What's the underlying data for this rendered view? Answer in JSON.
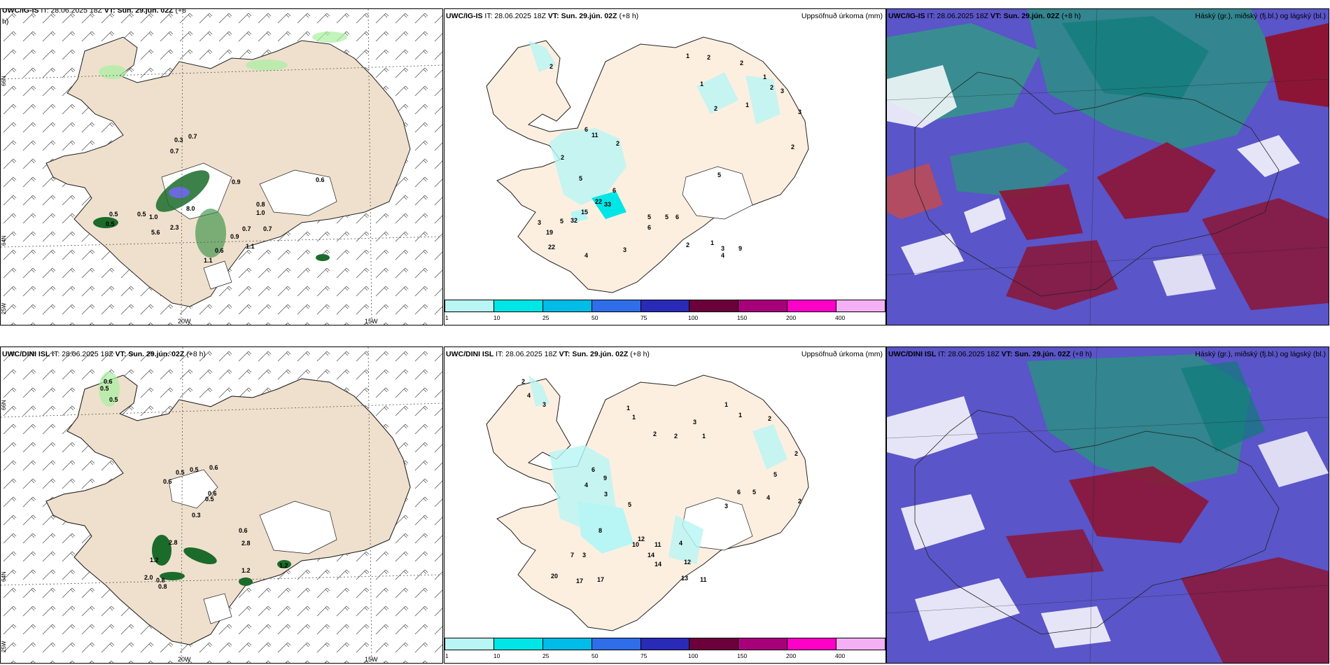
{
  "panels": [
    {
      "model": "UWC/IG-IS",
      "it": "IT: 28.06.2025 18Z",
      "vt_label": "VT:",
      "vt": "Sun. 29.jún. 02Z",
      "lead": "(+8",
      "lead2": "h)",
      "right": ""
    },
    {
      "model": "UWC/IG-IS",
      "it": "IT: 28.06.2025 18Z",
      "vt_label": "VT:",
      "vt": "Sun. 29.jún. 02Z",
      "lead": "(+8 h)",
      "right": "Uppsöfnuð úrkoma (mm)"
    },
    {
      "model": "UWC/IG-IS",
      "it": "IT: 28.06.2025 18Z",
      "vt_label": "VT:",
      "vt": "Sun. 29.jún. 02Z",
      "lead": "(+8 h)",
      "right": "Háský (gr.), miðský (fj.bl.) og lágský (bl.)"
    },
    {
      "model": "UWC/DINI ISL",
      "it": "IT: 28.06.2025 18Z",
      "vt_label": "VT:",
      "vt": "Sun. 29.jún. 02Z",
      "lead": "(+8 h)",
      "right": ""
    },
    {
      "model": "UWC/DINI ISL",
      "it": "IT: 28.06.2025 18Z",
      "vt_label": "VT:",
      "vt": "Sun. 29.jún. 02Z",
      "lead": "(+8 h)",
      "right": "Uppsöfnuð úrkoma (mm)"
    },
    {
      "model": "UWC/DINI ISL",
      "it": "IT: 28.06.2025 18Z",
      "vt_label": "VT:",
      "vt": "Sun. 29.jún. 02Z",
      "lead": "(+8 h)",
      "right": "Háský (gr.), miðský (fj.bl.) og lágský (bl.)"
    }
  ],
  "axes": {
    "lon_20w": "20W",
    "lon_15w": "15W",
    "lat_66n": "66N",
    "lat_64n": "64N",
    "lon_25w": "25W"
  },
  "legend": {
    "colors": [
      "#b8f5f5",
      "#00e5e5",
      "#00bce8",
      "#2f6ee8",
      "#2a2ab8",
      "#6b003b",
      "#a8007a",
      "#ff00c8",
      "#f5b0f5"
    ],
    "labels": [
      "1",
      "10",
      "25",
      "50",
      "75",
      "100",
      "150",
      "200",
      "400"
    ]
  },
  "precip_top_labels": [
    "0.7",
    "0.3",
    "0.7",
    "0.9",
    "0.6",
    "0.5",
    "0.5",
    "0.5",
    "1.0",
    "8.0",
    "5.6",
    "2.3",
    "0.8",
    "1.0",
    "0.7",
    "0.7",
    "0.9",
    "1.1",
    "0.6",
    "1.1"
  ],
  "precip_bottom_labels": [
    "0.6",
    "0.5",
    "0.5",
    "0.5",
    "0.5",
    "0.6",
    "0.6",
    "0.5",
    "0.3",
    "0.6",
    "2.8",
    "1.2",
    "2.0",
    "0.8",
    "0.8",
    "1.2",
    "2.8",
    "0.6",
    "1.2"
  ],
  "accum_top_labels": [
    "2",
    "1",
    "2",
    "2",
    "1",
    "2",
    "1",
    "1",
    "2",
    "3",
    "3",
    "2",
    "6",
    "11",
    "2",
    "2",
    "5",
    "6",
    "22",
    "33",
    "15",
    "19",
    "22",
    "32",
    "3",
    "5",
    "4",
    "3",
    "5",
    "6",
    "5",
    "6",
    "2",
    "1",
    "3",
    "9",
    "4",
    "5"
  ],
  "accum_bottom_labels": [
    "2",
    "4",
    "3",
    "1",
    "1",
    "2",
    "2",
    "1",
    "3",
    "1",
    "1",
    "2",
    "2",
    "6",
    "9",
    "4",
    "3",
    "5",
    "12",
    "10",
    "11",
    "14",
    "14",
    "12",
    "11",
    "13",
    "17",
    "17",
    "20",
    "7",
    "3",
    "8",
    "4",
    "6",
    "5",
    "4",
    "5",
    "2",
    "3"
  ]
}
